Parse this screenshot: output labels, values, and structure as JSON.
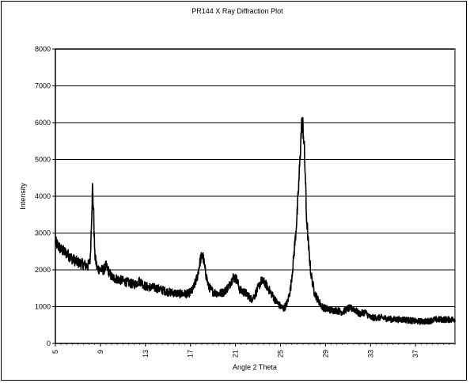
{
  "chart_data": {
    "type": "line",
    "title": "PR144 X Ray Diffraction Plot",
    "xlabel": "Angle 2 Theta",
    "ylabel": "Intensity",
    "xlim": [
      5,
      40.5
    ],
    "ylim": [
      0,
      8000
    ],
    "x_ticks": [
      5,
      9,
      13,
      17,
      21,
      25,
      29,
      33,
      37
    ],
    "y_ticks": [
      0,
      1000,
      2000,
      3000,
      4000,
      5000,
      6000,
      7000,
      8000
    ],
    "grid": "horizontal",
    "legend": "none",
    "colors": {
      "line": "#000000",
      "grid": "#000000",
      "plot_border": "#808080"
    },
    "series": [
      {
        "x": [
          5.0,
          5.5,
          6.0,
          6.5,
          7.0,
          7.5,
          7.9,
          8.1,
          8.3,
          8.4,
          8.5,
          8.7,
          9.0,
          9.3,
          9.5,
          10.0,
          11.0,
          12.0,
          12.5,
          13.0,
          14.0,
          15.0,
          16.0,
          16.8,
          17.2,
          17.6,
          17.9,
          18.1,
          18.3,
          18.6,
          19.0,
          19.5,
          20.0,
          20.4,
          20.8,
          21.1,
          21.4,
          21.7,
          22.0,
          22.4,
          22.7,
          23.0,
          23.3,
          23.6,
          23.9,
          24.2,
          24.6,
          25.0,
          25.3,
          25.6,
          25.9,
          26.1,
          26.3,
          26.5,
          26.7,
          26.8,
          26.9,
          27.0,
          27.1,
          27.2,
          27.3,
          27.5,
          27.7,
          28.0,
          28.3,
          28.7,
          29.0,
          29.5,
          30.0,
          30.5,
          31.0,
          31.5,
          32.0,
          32.5,
          33.0,
          34.0,
          35.0,
          36.0,
          37.0,
          38.0,
          38.8,
          39.5,
          40.0,
          40.5
        ],
        "y": [
          2750,
          2550,
          2450,
          2300,
          2200,
          2150,
          2100,
          2300,
          4250,
          3500,
          2400,
          2050,
          2000,
          2000,
          2100,
          1800,
          1700,
          1600,
          1700,
          1550,
          1500,
          1400,
          1350,
          1350,
          1450,
          1800,
          2300,
          2400,
          2000,
          1550,
          1400,
          1350,
          1400,
          1550,
          1800,
          1750,
          1450,
          1400,
          1350,
          1200,
          1300,
          1500,
          1700,
          1650,
          1500,
          1350,
          1150,
          1000,
          950,
          1100,
          1500,
          2100,
          2800,
          3600,
          4800,
          5500,
          6000,
          5900,
          5400,
          4600,
          3500,
          2600,
          1900,
          1400,
          1200,
          1000,
          950,
          900,
          900,
          850,
          950,
          950,
          800,
          850,
          700,
          700,
          650,
          650,
          600,
          600,
          650,
          650,
          650,
          650
        ]
      }
    ]
  }
}
